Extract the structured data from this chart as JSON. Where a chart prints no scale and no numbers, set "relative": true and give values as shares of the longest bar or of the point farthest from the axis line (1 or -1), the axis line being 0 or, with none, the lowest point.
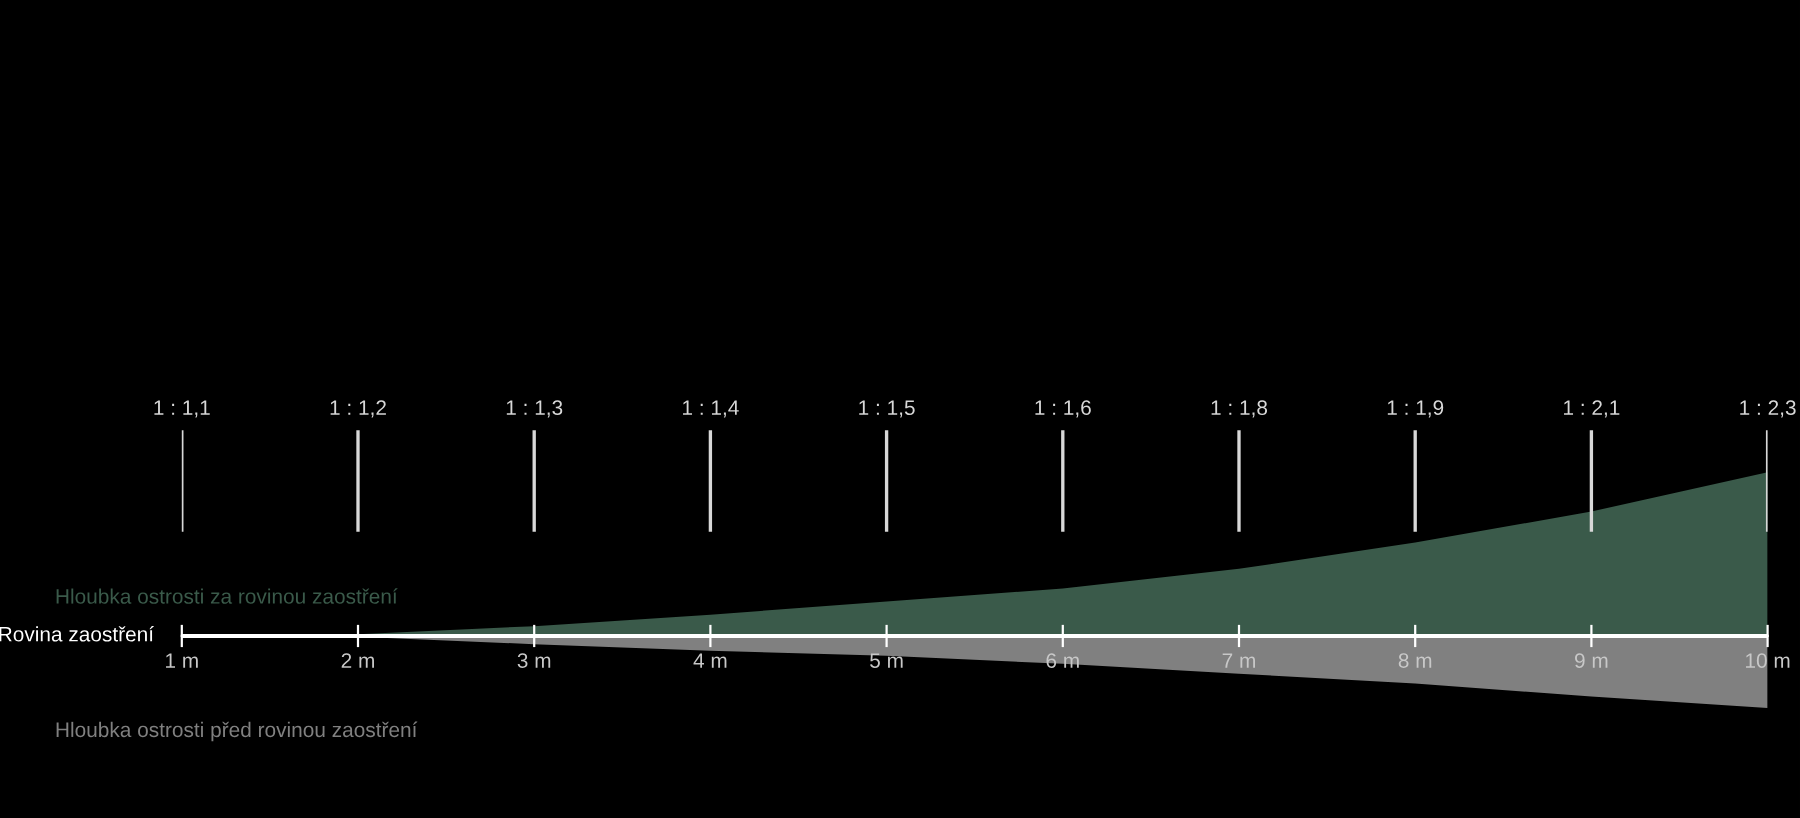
{
  "chart_data": {
    "type": "area",
    "relative": true,
    "x": [
      1,
      2,
      3,
      4,
      5,
      6,
      7,
      8,
      9,
      10
    ],
    "xlim": [
      1,
      10
    ],
    "xticks": [
      {
        "value": 1,
        "label": "1 m"
      },
      {
        "value": 2,
        "label": "2 m"
      },
      {
        "value": 3,
        "label": "3 m"
      },
      {
        "value": 4,
        "label": "4 m"
      },
      {
        "value": 5,
        "label": "5 m"
      },
      {
        "value": 6,
        "label": "6 m"
      },
      {
        "value": 7,
        "label": "7 m"
      },
      {
        "value": 8,
        "label": "8 m"
      },
      {
        "value": 9,
        "label": "9 m"
      },
      {
        "value": 10,
        "label": "10 m"
      }
    ],
    "series": [
      {
        "name": "Hloubka ostrosti za rovinou zaostření",
        "color": "#3a5a4a",
        "values": [
          0,
          0.01,
          0.06,
          0.13,
          0.21,
          0.29,
          0.41,
          0.57,
          0.76,
          1
        ]
      },
      {
        "name": "Hloubka ostrosti před rovinou zaostření",
        "color": "#808080",
        "values": [
          0,
          -0.005,
          -0.05,
          -0.09,
          -0.12,
          -0.17,
          -0.23,
          -0.29,
          -0.37,
          -0.44
        ]
      }
    ],
    "ref_lines": [
      {
        "axis": "y",
        "value": 0,
        "label": "Rovina zaostření",
        "color": "#ffffff"
      }
    ],
    "annotations": [
      {
        "text": "1 : 1,1",
        "x": 1
      },
      {
        "text": "1 : 1,2",
        "x": 2
      },
      {
        "text": "1 : 1,3",
        "x": 3
      },
      {
        "text": "1 : 1,4",
        "x": 4
      },
      {
        "text": "1 : 1,5",
        "x": 5
      },
      {
        "text": "1 : 1,6",
        "x": 6
      },
      {
        "text": "1 : 1,8",
        "x": 7
      },
      {
        "text": "1 : 1,9",
        "x": 8
      },
      {
        "text": "1 : 2,1",
        "x": 9
      },
      {
        "text": "1 : 2,3",
        "x": 10
      }
    ],
    "grid": false,
    "legend": false
  }
}
